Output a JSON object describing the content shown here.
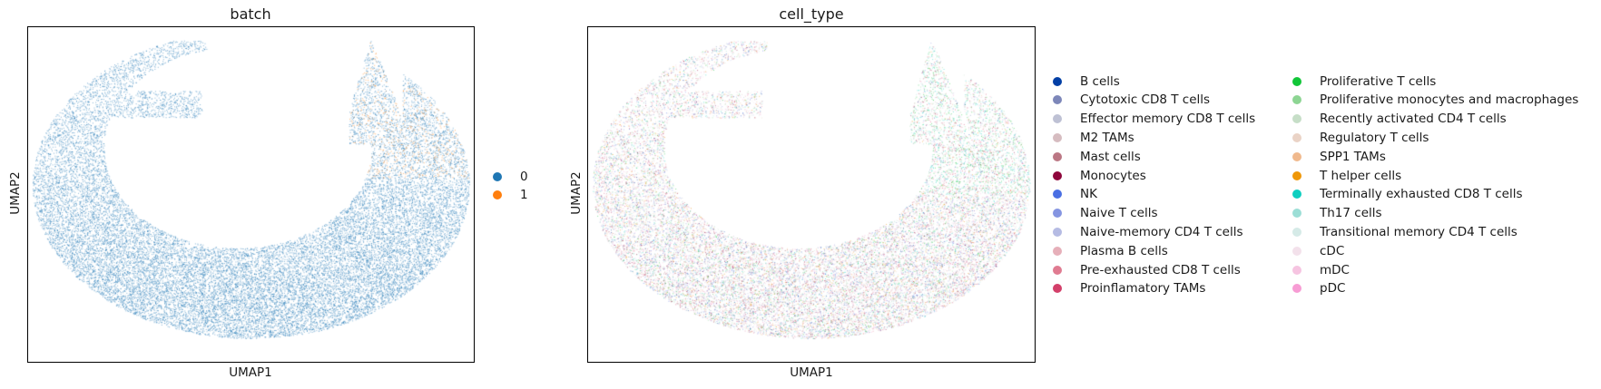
{
  "chart_data": [
    {
      "type": "scatter",
      "title": "batch",
      "xlabel": "UMAP1",
      "ylabel": "UMAP2",
      "grid": false,
      "legend_placement": "right",
      "series": [
        {
          "name": "0",
          "color": "#1f77b4",
          "share": 0.995
        },
        {
          "name": "1",
          "color": "#ff7f0e",
          "share": 0.005
        }
      ]
    },
    {
      "type": "scatter",
      "title": "cell_type",
      "xlabel": "UMAP1",
      "ylabel": "UMAP2",
      "grid": false,
      "legend_placement": "right",
      "series": [
        {
          "name": "B cells",
          "color": "#023fa5"
        },
        {
          "name": "Cytotoxic CD8 T cells",
          "color": "#7d87b9"
        },
        {
          "name": "Effector memory CD8 T cells",
          "color": "#bec1d4"
        },
        {
          "name": "M2 TAMs",
          "color": "#d6bcc0"
        },
        {
          "name": "Mast cells",
          "color": "#bb7784"
        },
        {
          "name": "Monocytes",
          "color": "#8e063b"
        },
        {
          "name": "NK",
          "color": "#4a6fe3"
        },
        {
          "name": "Naive T cells",
          "color": "#8595e1"
        },
        {
          "name": "Naive-memory CD4 T cells",
          "color": "#b5bbe3"
        },
        {
          "name": "Plasma B cells",
          "color": "#e6afb9"
        },
        {
          "name": "Pre-exhausted CD8 T cells",
          "color": "#e07b91"
        },
        {
          "name": "Proinflamatory TAMs",
          "color": "#d33f6a"
        },
        {
          "name": "Proliferative T cells",
          "color": "#11c638"
        },
        {
          "name": "Proliferative monocytes and macrophages",
          "color": "#8dd593"
        },
        {
          "name": "Recently activated CD4 T cells",
          "color": "#c6dec7"
        },
        {
          "name": "Regulatory T cells",
          "color": "#ead3c6"
        },
        {
          "name": "SPP1 TAMs",
          "color": "#f0b98d"
        },
        {
          "name": "T helper cells",
          "color": "#ef9708"
        },
        {
          "name": "Terminally exhausted CD8 T cells",
          "color": "#0fcfc0"
        },
        {
          "name": "Th17 cells",
          "color": "#9cded6"
        },
        {
          "name": "Transitional memory CD4 T cells",
          "color": "#d5eae7"
        },
        {
          "name": "cDC",
          "color": "#f3e1eb"
        },
        {
          "name": "mDC",
          "color": "#f6c4e1"
        },
        {
          "name": "pDC",
          "color": "#f79cd4"
        }
      ]
    }
  ]
}
